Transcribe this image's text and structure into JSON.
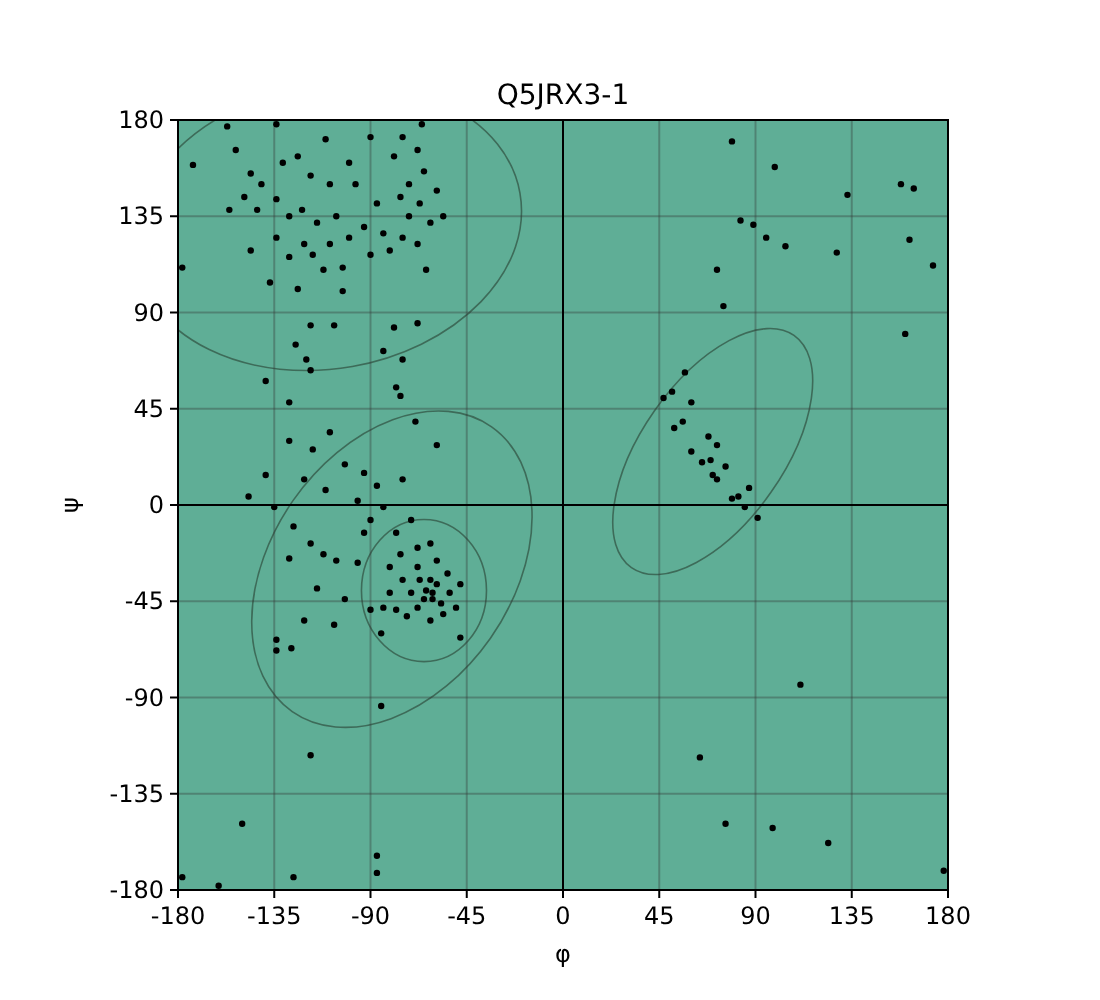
{
  "chart_data": {
    "type": "scatter",
    "title": "Q5JRX3-1",
    "xlabel": "φ",
    "ylabel": "ψ",
    "xlim": [
      -180,
      180
    ],
    "ylim": [
      -180,
      180
    ],
    "xticks": [
      -180,
      -135,
      -90,
      -45,
      0,
      45,
      90,
      135,
      180
    ],
    "yticks": [
      -180,
      -135,
      -90,
      -45,
      0,
      45,
      90,
      135,
      180
    ],
    "grid": true,
    "marker": "circle",
    "series": [
      {
        "color": "#000000",
        "x": [
          79,
          99,
          133,
          158,
          164,
          83,
          89,
          95,
          104,
          128,
          162,
          173,
          72,
          75,
          160,
          57,
          47,
          51,
          60,
          52,
          56,
          60,
          68,
          72,
          65,
          69,
          76,
          70,
          72,
          87,
          82,
          79,
          85,
          91,
          111,
          64,
          76,
          98,
          124,
          178,
          -85,
          -118,
          -150,
          -87,
          -87,
          -126,
          -178,
          -161,
          -157,
          -134,
          -111,
          -90,
          -75,
          -66,
          -173,
          -153,
          -146,
          -141,
          -131,
          -124,
          -118,
          -109,
          -100,
          -149,
          -156,
          -143,
          -134,
          -128,
          -122,
          -115,
          -106,
          -100,
          -93,
          -84,
          -134,
          -121,
          -117,
          -109,
          -128,
          -146,
          -112,
          -103,
          -90,
          -81,
          -76,
          -72,
          -65,
          -59,
          -67,
          -56,
          -62,
          -72,
          -75,
          -68,
          -64,
          -79,
          -68,
          -97,
          -87,
          -137,
          -124,
          -103,
          -178,
          -118,
          -107,
          -125,
          -120,
          -118,
          -84,
          -79,
          -75,
          -139,
          -128,
          -78,
          -76,
          -68,
          -69,
          -59,
          -139,
          -147,
          -135,
          -128,
          -117,
          -109,
          -102,
          -93,
          -121,
          -111,
          -96,
          -87,
          -75,
          -126,
          -118,
          -112,
          -106,
          -96,
          -93,
          -90,
          -84,
          -128,
          -115,
          -102,
          -90,
          -121,
          -107,
          -134,
          -134,
          -127,
          -85,
          -48,
          -78,
          -71,
          -76,
          -81,
          -68,
          -62,
          -59,
          -54,
          -53,
          -50,
          -56,
          -62,
          -68,
          -71,
          -75,
          -67,
          -64,
          -61,
          -65,
          -59,
          -57,
          -62,
          -68,
          -81,
          -84,
          -78,
          -73,
          -48,
          -61
        ],
        "values": [
          170,
          158,
          145,
          150,
          148,
          133,
          131,
          125,
          121,
          118,
          124,
          112,
          110,
          93,
          80,
          62,
          50,
          53,
          48,
          36,
          39,
          25,
          32,
          28,
          20,
          21,
          18,
          14,
          12,
          8,
          4,
          3,
          -1,
          -6,
          -84,
          -118,
          -149,
          -151,
          -158,
          -171,
          -94,
          -117,
          -149,
          -164,
          -172,
          -174,
          -174,
          -178,
          177,
          178,
          171,
          172,
          172,
          178,
          159,
          166,
          155,
          150,
          160,
          163,
          154,
          150,
          160,
          144,
          138,
          138,
          143,
          135,
          138,
          132,
          135,
          125,
          130,
          127,
          125,
          122,
          117,
          122,
          116,
          119,
          110,
          111,
          117,
          119,
          144,
          150,
          156,
          147,
          141,
          135,
          132,
          135,
          125,
          122,
          110,
          163,
          166,
          150,
          141,
          104,
          101,
          100,
          111,
          84,
          84,
          75,
          68,
          63,
          72,
          83,
          68,
          58,
          48,
          55,
          51,
          85,
          39,
          28,
          14,
          4,
          -1,
          30,
          26,
          34,
          19,
          15,
          12,
          7,
          2,
          9,
          12,
          -10,
          -18,
          -23,
          -26,
          -27,
          -13,
          -7,
          -1,
          -25,
          -39,
          -44,
          -49,
          -54,
          -56,
          -63,
          -68,
          -67,
          -60,
          -62,
          -13,
          -7,
          -23,
          -29,
          -20,
          -18,
          -26,
          -32,
          -41,
          -48,
          -51,
          -54,
          -48,
          -41,
          -35,
          -35,
          -40,
          -44,
          -44,
          -37,
          -46,
          -35,
          -29,
          -41,
          -48,
          -49,
          -52,
          -37,
          -41
        ]
      }
    ]
  }
}
